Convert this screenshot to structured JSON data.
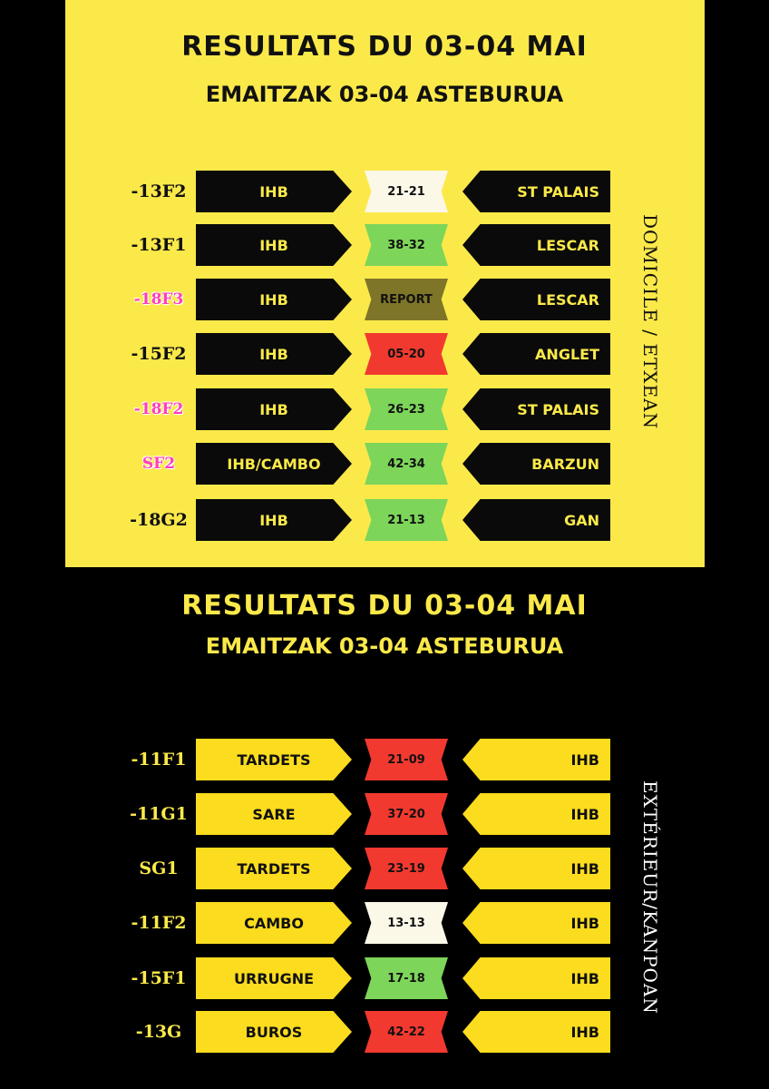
{
  "home": {
    "title": "RESULTATS DU 03-04 MAI",
    "subtitle": "EMAITZAK 03-04 ASTEBURUA",
    "side_label": "DOMICILE / ETXEAN",
    "matches": [
      {
        "category": "-13F2",
        "pink": false,
        "home_team": "IHB",
        "score": "21-21",
        "score_color": "#fbf8e8",
        "away_team": "ST PALAIS"
      },
      {
        "category": "-13F1",
        "pink": false,
        "home_team": "IHB",
        "score": "38-32",
        "score_color": "#7dd55a",
        "away_team": "LESCAR"
      },
      {
        "category": "-18F3",
        "pink": true,
        "home_team": "IHB",
        "score": "REPORT",
        "score_color": "#7f7528",
        "away_team": "LESCAR"
      },
      {
        "category": "-15F2",
        "pink": false,
        "home_team": "IHB",
        "score": "05-20",
        "score_color": "#f2392f",
        "away_team": "ANGLET"
      },
      {
        "category": "-18F2",
        "pink": true,
        "home_team": "IHB",
        "score": "26-23",
        "score_color": "#7dd55a",
        "away_team": "ST PALAIS"
      },
      {
        "category": "SF2",
        "pink": true,
        "home_team": "IHB/CAMBO",
        "score": "42-34",
        "score_color": "#7dd55a",
        "away_team": "BARZUN"
      },
      {
        "category": "-18G2",
        "pink": false,
        "home_team": "IHB",
        "score": "21-13",
        "score_color": "#7dd55a",
        "away_team": "GAN"
      }
    ]
  },
  "away": {
    "title": "RESULTATS DU 03-04 MAI",
    "subtitle": "EMAITZAK 03-04 ASTEBURUA",
    "side_label": "EXTÉRIEUR/KANPOAN",
    "matches": [
      {
        "category": "-11F1",
        "home_team": "TARDETS",
        "score": "21-09",
        "score_color": "#f2392f",
        "away_team": "IHB"
      },
      {
        "category": "-11G1",
        "home_team": "SARE",
        "score": "37-20",
        "score_color": "#f2392f",
        "away_team": "IHB"
      },
      {
        "category": "SG1",
        "home_team": "TARDETS",
        "score": "23-19",
        "score_color": "#f2392f",
        "away_team": "IHB"
      },
      {
        "category": "-11F2",
        "home_team": "CAMBO",
        "score": "13-13",
        "score_color": "#fbf8e8",
        "away_team": "IHB"
      },
      {
        "category": "-15F1",
        "home_team": "URRUGNE",
        "score": "17-18",
        "score_color": "#7dd55a",
        "away_team": "IHB"
      },
      {
        "category": "-13G",
        "home_team": "BUROS",
        "score": "42-22",
        "score_color": "#f2392f",
        "away_team": "IHB"
      }
    ]
  }
}
